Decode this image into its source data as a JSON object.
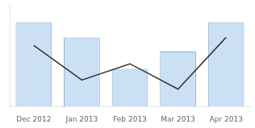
{
  "chart_data": {
    "type": "bar",
    "categories": [
      "Dec 2012",
      "Jan 2013",
      "Feb 2013",
      "Mar 2013",
      "Apr 2013"
    ],
    "series": [
      {
        "type": "bar",
        "color": "#cce0f5",
        "values": [
          0.83,
          0.68,
          0.37,
          0.54,
          0.83
        ]
      },
      {
        "type": "line",
        "color": "#333333",
        "values": [
          0.6,
          0.26,
          0.42,
          0.17,
          0.68
        ]
      }
    ],
    "ylim": [
      0,
      1.0
    ],
    "grid": false,
    "tick_labels": "x"
  }
}
